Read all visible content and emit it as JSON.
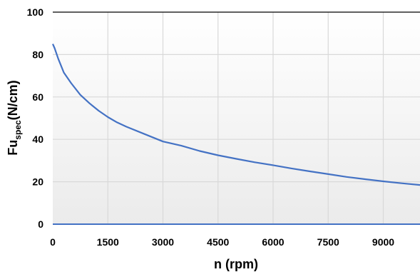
{
  "chart_data": {
    "type": "line",
    "xlabel": "n (rpm)",
    "ylabel": {
      "main": "Fu",
      "sub": "spec",
      "suffix": "(N/cm)"
    },
    "xlim": [
      0,
      10000
    ],
    "ylim": [
      0,
      100
    ],
    "x_ticks": [
      0,
      1500,
      3000,
      4500,
      6000,
      7500,
      9000
    ],
    "y_ticks": [
      0,
      20,
      40,
      60,
      80,
      100
    ],
    "grid": true,
    "colors": {
      "line": "#4472c4",
      "grid": "#d9d9d9",
      "x_axis": "#4472c4",
      "top_border": "#000000"
    },
    "series": [
      {
        "x": [
          0,
          50,
          150,
          300,
          500,
          750,
          1000,
          1250,
          1500,
          1750,
          2000,
          2500,
          3000,
          3500,
          4000,
          4500,
          5000,
          5500,
          6000,
          6500,
          7000,
          7500,
          8000,
          8500,
          9000,
          9500,
          10000
        ],
        "y": [
          85,
          83,
          78,
          71.5,
          66.5,
          61,
          57,
          53.5,
          50.5,
          48,
          46,
          42.5,
          39,
          37,
          34.5,
          32.5,
          30.8,
          29.2,
          27.8,
          26.3,
          24.9,
          23.6,
          22.3,
          21.2,
          20.2,
          19.3,
          18.5
        ]
      }
    ]
  }
}
